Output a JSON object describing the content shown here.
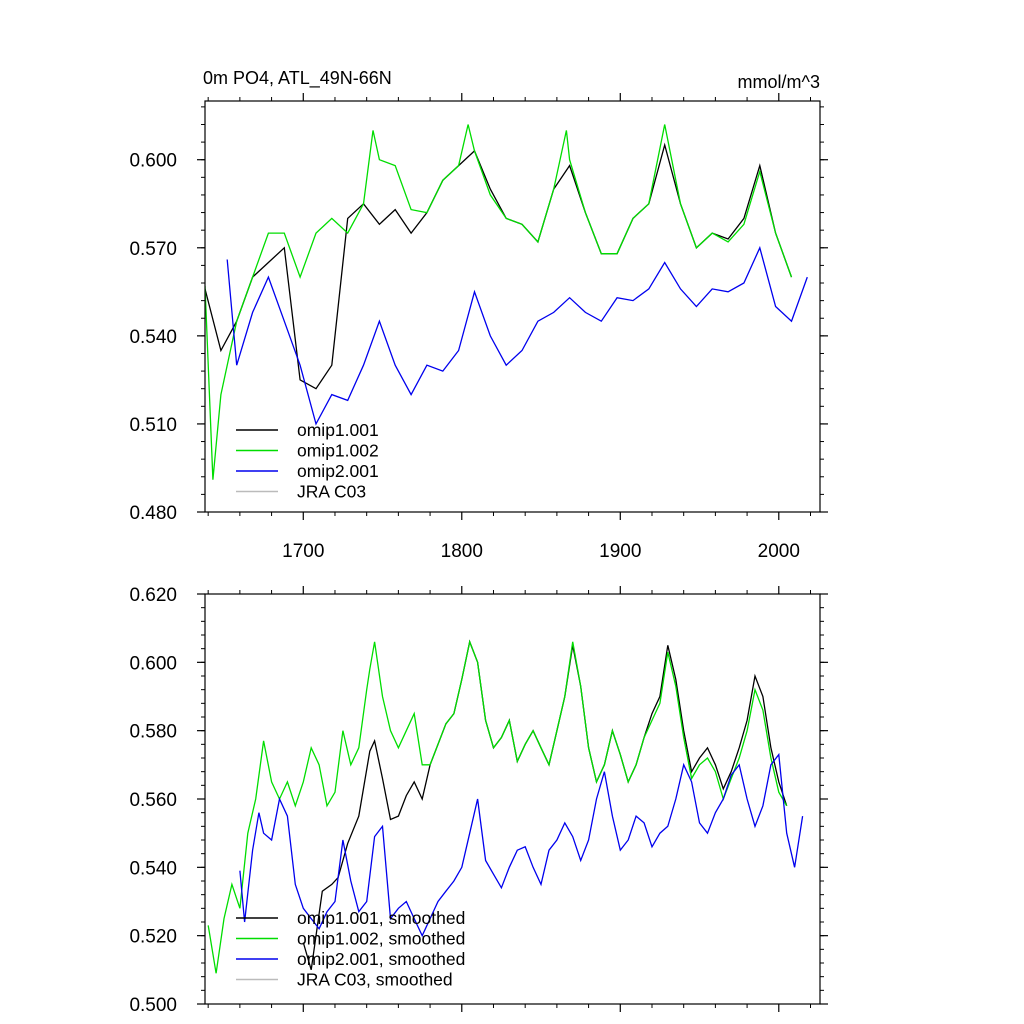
{
  "chart_data": [
    {
      "type": "line",
      "title": "0m PO4, ATL_49N-66N",
      "units_label": "mmol/m^3",
      "xlabel": "",
      "ylabel": "",
      "xlim": [
        1638,
        2026
      ],
      "ylim": [
        0.48,
        0.62
      ],
      "xticks": [
        1700,
        1800,
        1900,
        2000
      ],
      "xtick_labels": [
        "1700",
        "1800",
        "1900",
        "2000"
      ],
      "yticks": [
        0.48,
        0.51,
        0.54,
        0.57,
        0.6
      ],
      "ytick_labels": [
        "0.480",
        "0.510",
        "0.540",
        "0.570",
        "0.600"
      ],
      "grid": false,
      "legend_position": "bottom-left",
      "series": [
        {
          "name": "omip1.001",
          "color": "#000000",
          "x": [
            1638,
            1648,
            1658,
            1668,
            1678,
            1688,
            1698,
            1708,
            1718,
            1728,
            1738,
            1748,
            1758,
            1768,
            1778,
            1788,
            1798,
            1808,
            1818,
            1828,
            1838,
            1848,
            1858,
            1868,
            1878,
            1888,
            1898,
            1908,
            1918,
            1928,
            1938,
            1948,
            1958,
            1968,
            1978,
            1988,
            1998,
            2008
          ],
          "y": [
            0.556,
            0.535,
            0.545,
            0.56,
            0.565,
            0.57,
            0.525,
            0.522,
            0.53,
            0.58,
            0.585,
            0.578,
            0.583,
            0.575,
            0.582,
            0.593,
            0.598,
            0.603,
            0.59,
            0.58,
            0.578,
            0.572,
            0.59,
            0.598,
            0.582,
            0.568,
            0.568,
            0.58,
            0.585,
            0.605,
            0.585,
            0.57,
            0.575,
            0.573,
            0.58,
            0.598,
            0.575,
            0.56
          ]
        },
        {
          "name": "omip1.002",
          "color": "#00dd00",
          "x": [
            1638,
            1643,
            1648,
            1658,
            1668,
            1678,
            1688,
            1698,
            1708,
            1718,
            1728,
            1738,
            1744,
            1748,
            1758,
            1768,
            1778,
            1788,
            1798,
            1804,
            1808,
            1818,
            1828,
            1838,
            1848,
            1858,
            1866,
            1868,
            1878,
            1888,
            1898,
            1908,
            1918,
            1928,
            1938,
            1948,
            1958,
            1968,
            1978,
            1988,
            1998,
            2008
          ],
          "y": [
            0.557,
            0.491,
            0.52,
            0.545,
            0.56,
            0.575,
            0.575,
            0.56,
            0.575,
            0.58,
            0.575,
            0.585,
            0.61,
            0.6,
            0.598,
            0.583,
            0.582,
            0.593,
            0.598,
            0.612,
            0.603,
            0.588,
            0.58,
            0.578,
            0.572,
            0.59,
            0.61,
            0.6,
            0.582,
            0.568,
            0.568,
            0.58,
            0.585,
            0.612,
            0.585,
            0.57,
            0.575,
            0.572,
            0.578,
            0.596,
            0.575,
            0.56
          ]
        },
        {
          "name": "omip2.001",
          "color": "#0000ee",
          "x": [
            1652,
            1658,
            1668,
            1678,
            1688,
            1698,
            1708,
            1718,
            1728,
            1738,
            1748,
            1758,
            1768,
            1778,
            1788,
            1798,
            1808,
            1818,
            1828,
            1838,
            1848,
            1858,
            1868,
            1878,
            1888,
            1898,
            1908,
            1918,
            1928,
            1938,
            1948,
            1958,
            1968,
            1978,
            1988,
            1998,
            2008,
            2018
          ],
          "y": [
            0.566,
            0.53,
            0.548,
            0.56,
            0.545,
            0.53,
            0.51,
            0.52,
            0.518,
            0.53,
            0.545,
            0.53,
            0.52,
            0.53,
            0.528,
            0.535,
            0.555,
            0.54,
            0.53,
            0.535,
            0.545,
            0.548,
            0.553,
            0.548,
            0.545,
            0.553,
            0.552,
            0.556,
            0.565,
            0.556,
            0.55,
            0.556,
            0.555,
            0.558,
            0.57,
            0.55,
            0.545,
            0.56
          ]
        },
        {
          "name": "JRA C03",
          "color": "#bbbbbb",
          "x": [],
          "y": []
        }
      ]
    },
    {
      "type": "line",
      "title": "",
      "xlabel": "",
      "ylabel": "",
      "xlim": [
        1638,
        2026
      ],
      "ylim": [
        0.5,
        0.62
      ],
      "xticks": [
        1700,
        1800,
        1900,
        2000
      ],
      "yticks": [
        0.5,
        0.52,
        0.54,
        0.56,
        0.58,
        0.6,
        0.62
      ],
      "ytick_labels": [
        "0.500",
        "0.520",
        "0.540",
        "0.560",
        "0.580",
        "0.600",
        "0.620"
      ],
      "grid": false,
      "legend_position": "bottom-left",
      "series": [
        {
          "name": "omip1.001, smoothed",
          "color": "#000000",
          "x": [
            1700,
            1705,
            1712,
            1718,
            1722,
            1728,
            1735,
            1742,
            1745,
            1750,
            1755,
            1760,
            1765,
            1770,
            1775,
            1780,
            1790,
            1795,
            1800,
            1805,
            1810,
            1815,
            1820,
            1825,
            1830,
            1835,
            1840,
            1845,
            1850,
            1855,
            1860,
            1865,
            1870,
            1875,
            1880,
            1885,
            1890,
            1895,
            1900,
            1905,
            1910,
            1915,
            1920,
            1925,
            1930,
            1935,
            1940,
            1945,
            1950,
            1955,
            1960,
            1965,
            1970,
            1975,
            1980,
            1985,
            1990,
            1995,
            2000,
            2005
          ],
          "y": [
            0.518,
            0.51,
            0.533,
            0.535,
            0.537,
            0.547,
            0.555,
            0.574,
            0.577,
            0.566,
            0.554,
            0.555,
            0.561,
            0.565,
            0.56,
            0.57,
            0.582,
            0.585,
            0.595,
            0.606,
            0.6,
            0.583,
            0.575,
            0.578,
            0.583,
            0.571,
            0.576,
            0.58,
            0.575,
            0.57,
            0.58,
            0.59,
            0.605,
            0.593,
            0.575,
            0.565,
            0.57,
            0.58,
            0.573,
            0.565,
            0.57,
            0.578,
            0.585,
            0.59,
            0.605,
            0.595,
            0.58,
            0.568,
            0.572,
            0.575,
            0.57,
            0.563,
            0.568,
            0.575,
            0.583,
            0.596,
            0.59,
            0.575,
            0.565,
            0.558
          ]
        },
        {
          "name": "omip1.002, smoothed",
          "color": "#00dd00",
          "x": [
            1640,
            1645,
            1650,
            1655,
            1660,
            1665,
            1670,
            1675,
            1680,
            1685,
            1690,
            1695,
            1700,
            1705,
            1710,
            1715,
            1720,
            1725,
            1730,
            1735,
            1740,
            1742,
            1745,
            1750,
            1755,
            1760,
            1765,
            1770,
            1775,
            1780,
            1790,
            1795,
            1800,
            1805,
            1810,
            1815,
            1820,
            1825,
            1830,
            1835,
            1840,
            1845,
            1850,
            1855,
            1860,
            1865,
            1870,
            1875,
            1880,
            1885,
            1890,
            1895,
            1900,
            1905,
            1910,
            1915,
            1920,
            1925,
            1930,
            1935,
            1940,
            1945,
            1950,
            1955,
            1960,
            1965,
            1970,
            1975,
            1980,
            1985,
            1990,
            1995,
            2000,
            2005
          ],
          "y": [
            0.523,
            0.509,
            0.525,
            0.535,
            0.528,
            0.55,
            0.56,
            0.577,
            0.565,
            0.56,
            0.565,
            0.558,
            0.565,
            0.575,
            0.57,
            0.558,
            0.562,
            0.58,
            0.57,
            0.575,
            0.592,
            0.598,
            0.606,
            0.59,
            0.58,
            0.575,
            0.58,
            0.585,
            0.57,
            0.57,
            0.582,
            0.585,
            0.595,
            0.606,
            0.6,
            0.583,
            0.575,
            0.578,
            0.583,
            0.571,
            0.576,
            0.58,
            0.575,
            0.57,
            0.58,
            0.59,
            0.606,
            0.593,
            0.575,
            0.565,
            0.57,
            0.58,
            0.573,
            0.565,
            0.57,
            0.578,
            0.583,
            0.588,
            0.603,
            0.593,
            0.578,
            0.566,
            0.57,
            0.572,
            0.568,
            0.56,
            0.566,
            0.572,
            0.58,
            0.592,
            0.586,
            0.572,
            0.562,
            0.558
          ]
        },
        {
          "name": "omip2.001, smoothed",
          "color": "#0000ee",
          "x": [
            1660,
            1663,
            1668,
            1672,
            1675,
            1680,
            1685,
            1690,
            1695,
            1700,
            1705,
            1710,
            1715,
            1720,
            1725,
            1730,
            1735,
            1740,
            1745,
            1750,
            1755,
            1760,
            1765,
            1770,
            1775,
            1780,
            1785,
            1790,
            1795,
            1800,
            1805,
            1810,
            1815,
            1820,
            1825,
            1830,
            1835,
            1840,
            1845,
            1850,
            1855,
            1860,
            1865,
            1870,
            1875,
            1880,
            1885,
            1890,
            1895,
            1900,
            1905,
            1910,
            1915,
            1920,
            1925,
            1930,
            1935,
            1940,
            1945,
            1950,
            1955,
            1960,
            1965,
            1970,
            1975,
            1980,
            1985,
            1990,
            1995,
            2000,
            2005,
            2010,
            2015
          ],
          "y": [
            0.539,
            0.524,
            0.545,
            0.556,
            0.55,
            0.548,
            0.56,
            0.555,
            0.535,
            0.528,
            0.525,
            0.522,
            0.527,
            0.53,
            0.548,
            0.536,
            0.527,
            0.53,
            0.549,
            0.552,
            0.525,
            0.528,
            0.53,
            0.525,
            0.52,
            0.525,
            0.53,
            0.533,
            0.536,
            0.54,
            0.55,
            0.56,
            0.542,
            0.538,
            0.534,
            0.54,
            0.545,
            0.546,
            0.54,
            0.535,
            0.545,
            0.548,
            0.553,
            0.549,
            0.542,
            0.548,
            0.56,
            0.568,
            0.555,
            0.545,
            0.548,
            0.555,
            0.553,
            0.546,
            0.55,
            0.552,
            0.56,
            0.57,
            0.565,
            0.553,
            0.55,
            0.556,
            0.56,
            0.567,
            0.57,
            0.56,
            0.552,
            0.558,
            0.57,
            0.573,
            0.55,
            0.54,
            0.555
          ]
        },
        {
          "name": "JRA C03, smoothed",
          "color": "#bbbbbb",
          "x": [],
          "y": []
        }
      ]
    }
  ]
}
